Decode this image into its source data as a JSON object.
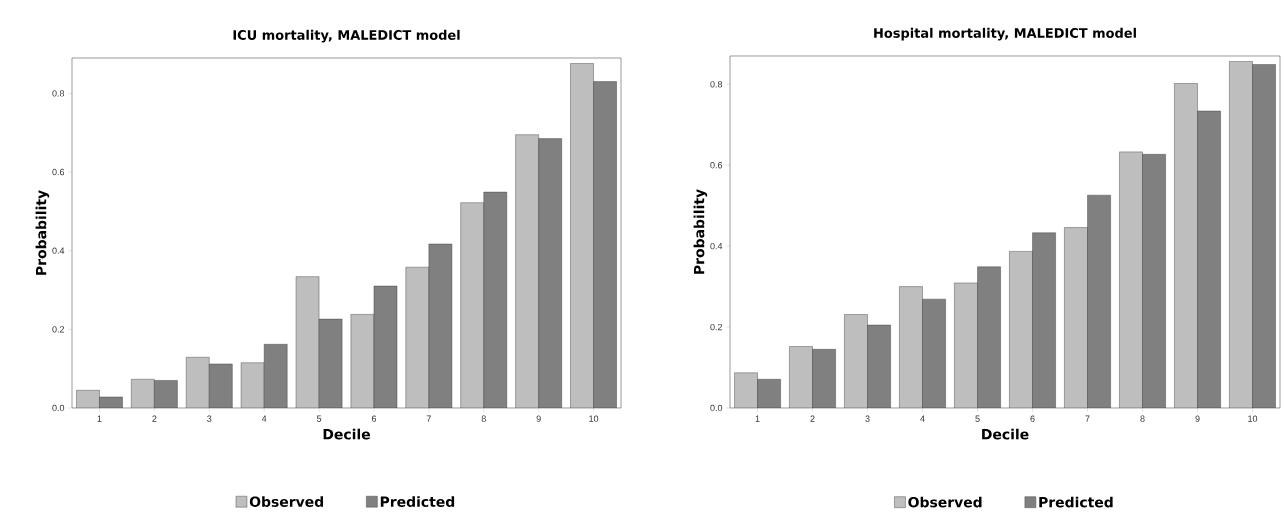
{
  "chart_data": [
    {
      "type": "bar",
      "title": "ICU mortality, MALEDICT model",
      "xlabel": "Decile",
      "ylabel": "Probability",
      "categories": [
        "1",
        "2",
        "3",
        "4",
        "5",
        "6",
        "7",
        "8",
        "9",
        "10"
      ],
      "series": [
        {
          "name": "Observed",
          "color": "#bebebe",
          "values": [
            0.045,
            0.073,
            0.129,
            0.115,
            0.334,
            0.238,
            0.358,
            0.522,
            0.695,
            0.876
          ]
        },
        {
          "name": "Predicted",
          "color": "#808080",
          "values": [
            0.028,
            0.07,
            0.112,
            0.162,
            0.226,
            0.31,
            0.417,
            0.549,
            0.685,
            0.83
          ]
        }
      ],
      "ylim": [
        0,
        0.89
      ],
      "yticks": [
        {
          "value": 0,
          "label": "0.0"
        },
        0.2,
        0.4,
        0.6,
        0.8
      ],
      "grid": false,
      "legend": "bottom"
    },
    {
      "type": "bar",
      "title": "Hospital mortality, MALEDICT model",
      "xlabel": "Decile",
      "ylabel": "Probability",
      "categories": [
        "1",
        "2",
        "3",
        "4",
        "5",
        "6",
        "7",
        "8",
        "9",
        "10"
      ],
      "series": [
        {
          "name": "Observed",
          "color": "#bebebe",
          "values": [
            0.087,
            0.152,
            0.231,
            0.3,
            0.309,
            0.387,
            0.446,
            0.633,
            0.802,
            0.857
          ]
        },
        {
          "name": "Predicted",
          "color": "#808080",
          "values": [
            0.071,
            0.145,
            0.205,
            0.269,
            0.349,
            0.433,
            0.526,
            0.627,
            0.734,
            0.849
          ]
        }
      ],
      "ylim": [
        0,
        0.87
      ],
      "yticks": [
        {
          "value": 0,
          "label": "0.0"
        },
        0.2,
        0.4,
        0.6,
        0.8
      ],
      "grid": false,
      "legend": "bottom"
    }
  ]
}
